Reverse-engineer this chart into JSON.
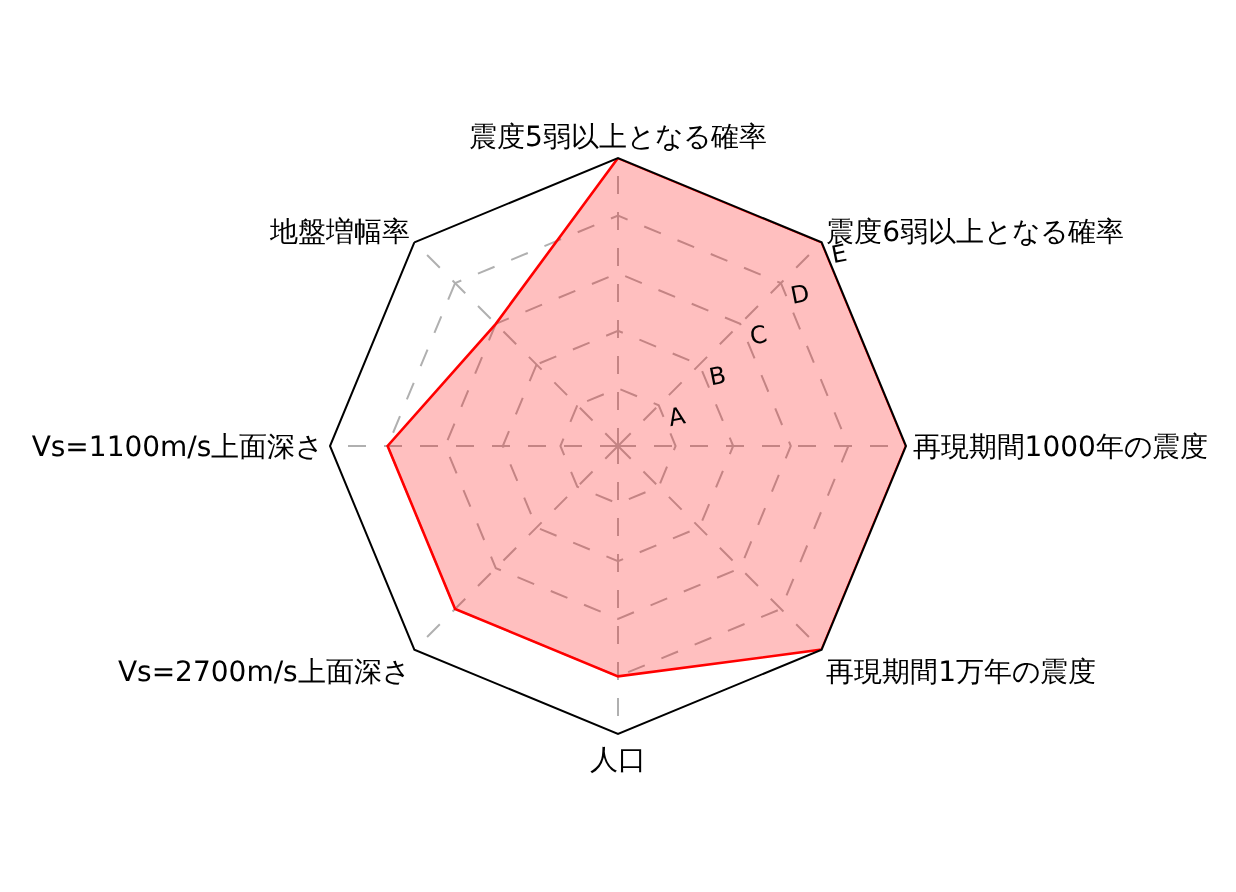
{
  "chart_data": {
    "type": "radar",
    "categories": [
      "震度5弱以上となる確率",
      "震度6弱以上となる確率",
      "再現期間1000年の震度",
      "再現期間1万年の震度",
      "人口",
      "Vs=2700m/s上面深さ",
      "Vs=1100m/s上面深さ",
      "地盤増幅率"
    ],
    "series": [
      {
        "color": "#ff0000",
        "values": [
          5,
          5,
          5,
          5,
          4,
          4,
          4,
          3
        ]
      }
    ],
    "ylim": [
      0,
      5
    ],
    "yticks": [
      {
        "value": 1,
        "label": "A"
      },
      {
        "value": 2,
        "label": "B"
      },
      {
        "value": 3,
        "label": "C"
      },
      {
        "value": 4,
        "label": "D"
      },
      {
        "value": 5,
        "label": "E"
      }
    ],
    "grid": true,
    "marker": "none"
  }
}
